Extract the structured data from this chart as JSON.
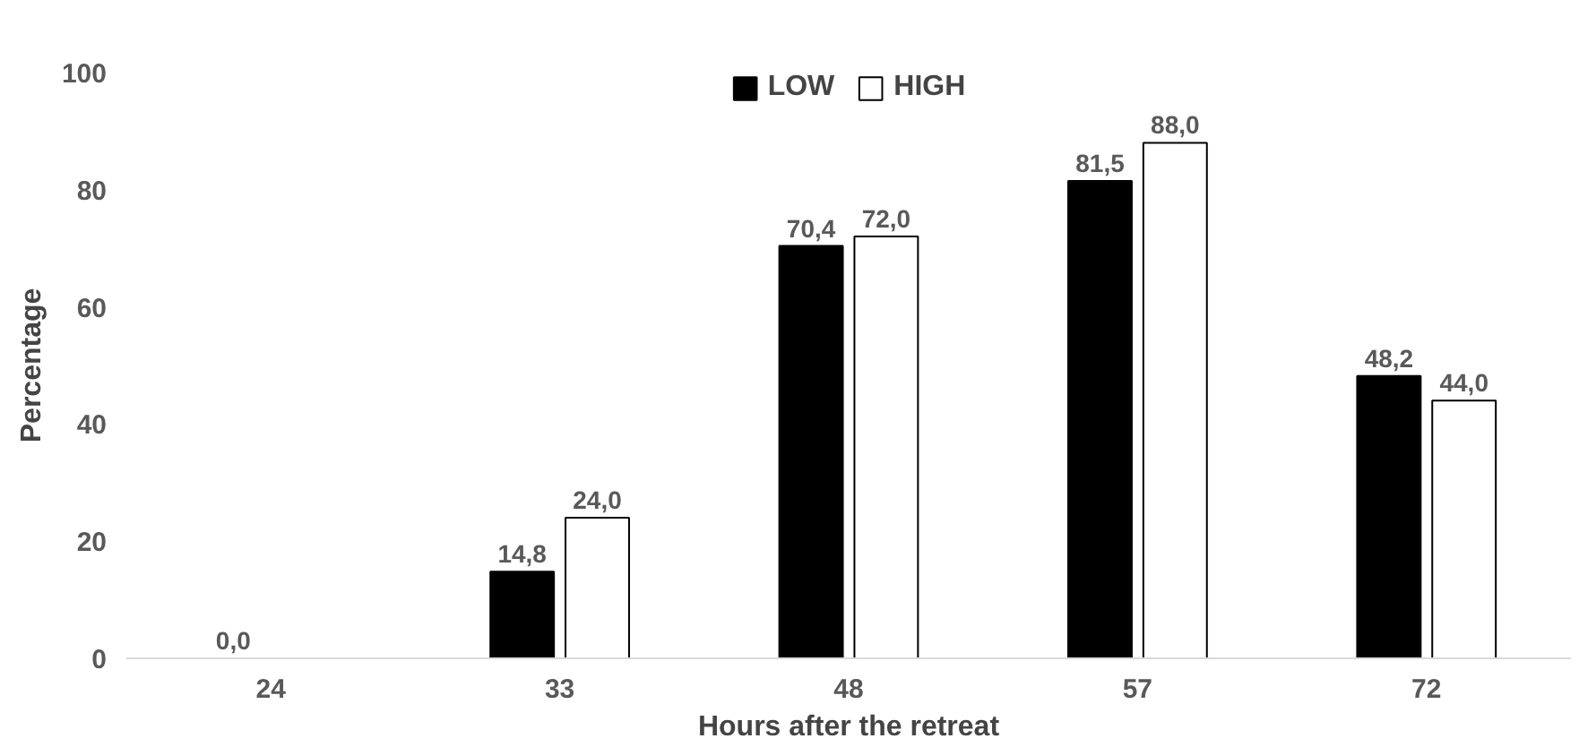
{
  "chart_data": {
    "type": "bar",
    "xlabel": "Hours after the retreat",
    "ylabel": "Percentage",
    "categories": [
      "24",
      "33",
      "48",
      "57",
      "72"
    ],
    "series": [
      {
        "name": "LOW",
        "color": "#000000",
        "values": [
          0.0,
          14.8,
          70.4,
          81.5,
          48.2
        ],
        "value_labels": [
          "0,0",
          "14,8",
          "70,4",
          "81,5",
          "48,2"
        ]
      },
      {
        "name": "HIGH",
        "color": "#ffffff",
        "values": [
          null,
          24.0,
          72.0,
          88.0,
          44.0
        ],
        "value_labels": [
          null,
          "24,0",
          "72,0",
          "88,0",
          "44,0"
        ]
      }
    ],
    "ylim": [
      0,
      100
    ],
    "yticks": [
      0,
      20,
      40,
      60,
      80,
      100
    ],
    "grid": false,
    "legend": "top"
  }
}
